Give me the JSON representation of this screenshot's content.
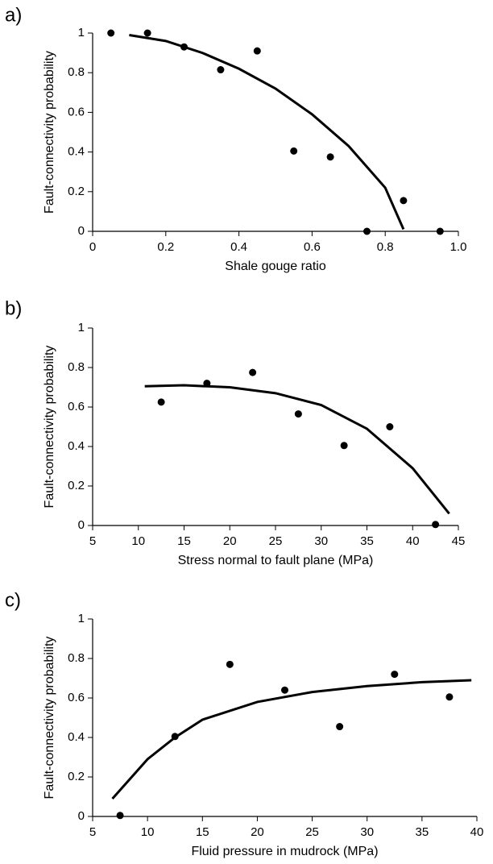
{
  "chart_data": [
    {
      "type": "scatter",
      "label": "a)",
      "xlabel": "Shale gouge ratio",
      "ylabel": "Fault-connectivity probability",
      "xlim": [
        0,
        1
      ],
      "ylim": [
        0,
        1
      ],
      "xticks": [
        0,
        0.2,
        0.4,
        0.6,
        0.8,
        {
          "value": 1,
          "label": "1.0"
        }
      ],
      "yticks": [
        0,
        0.2,
        0.4,
        0.6,
        0.8,
        1
      ],
      "series": [
        {
          "type": "scatter",
          "color": "#000000",
          "x": [
            0.05,
            0.15,
            0.25,
            0.35,
            0.45,
            0.55,
            0.65,
            0.75,
            0.85,
            0.95
          ],
          "values": [
            1,
            1,
            0.93,
            0.815,
            0.91,
            0.405,
            0.375,
            0,
            0.155,
            0
          ]
        },
        {
          "type": "line",
          "color": "#000000",
          "x": [
            0.1,
            0.2,
            0.3,
            0.4,
            0.5,
            0.6,
            0.7,
            0.8,
            0.85
          ],
          "values": [
            0.99,
            0.96,
            0.9,
            0.82,
            0.72,
            0.59,
            0.43,
            0.22,
            0.01
          ]
        }
      ]
    },
    {
      "type": "scatter",
      "label": "b)",
      "xlabel": "Stress normal to fault plane (MPa)",
      "ylabel": "Fault-connectivity probability",
      "xlim": [
        5,
        45
      ],
      "ylim": [
        0,
        1
      ],
      "xticks": [
        5,
        10,
        15,
        20,
        25,
        30,
        35,
        40,
        45
      ],
      "yticks": [
        0,
        0.2,
        0.4,
        0.6,
        0.8,
        1
      ],
      "series": [
        {
          "type": "scatter",
          "color": "#000000",
          "x": [
            12.5,
            17.5,
            22.5,
            27.5,
            32.5,
            37.5,
            42.5
          ],
          "values": [
            0.625,
            0.72,
            0.775,
            0.565,
            0.405,
            0.5,
            0.005
          ]
        },
        {
          "type": "line",
          "color": "#000000",
          "x": [
            10.7,
            15,
            20,
            25,
            30,
            35,
            40,
            44
          ],
          "values": [
            0.705,
            0.71,
            0.7,
            0.67,
            0.61,
            0.49,
            0.29,
            0.06
          ]
        }
      ]
    },
    {
      "type": "scatter",
      "label": "c)",
      "xlabel": "Fluid pressure in mudrock (MPa)",
      "ylabel": "Fault-connectivity probability",
      "xlim": [
        5,
        40
      ],
      "ylim": [
        0,
        1
      ],
      "xticks": [
        5,
        10,
        15,
        20,
        25,
        30,
        35,
        40
      ],
      "yticks": [
        0,
        0.2,
        0.4,
        0.6,
        0.8,
        1
      ],
      "series": [
        {
          "type": "scatter",
          "color": "#000000",
          "x": [
            7.5,
            12.5,
            17.5,
            22.5,
            27.5,
            32.5,
            37.5
          ],
          "values": [
            0.005,
            0.405,
            0.77,
            0.64,
            0.455,
            0.72,
            0.605
          ]
        },
        {
          "type": "line",
          "color": "#000000",
          "x": [
            6.8,
            10,
            12.5,
            15,
            20,
            25,
            30,
            35,
            39.5
          ],
          "values": [
            0.09,
            0.29,
            0.4,
            0.49,
            0.58,
            0.63,
            0.66,
            0.68,
            0.69
          ]
        }
      ]
    }
  ]
}
